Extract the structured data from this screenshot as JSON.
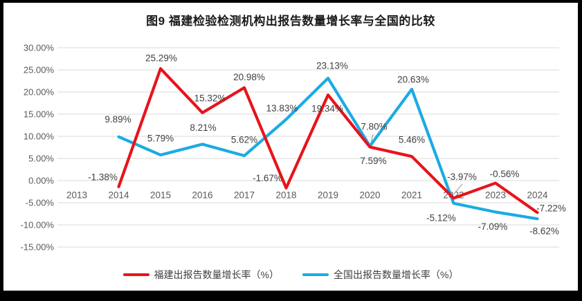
{
  "title": "图9 福建检验检测机构出报告数量增长率与全国的比较",
  "chart_data": {
    "type": "line",
    "title": "图9 福建检验检测机构出报告数量增长率与全国的比较",
    "categories": [
      "2013",
      "2014",
      "2015",
      "2016",
      "2017",
      "2018",
      "2019",
      "2020",
      "2021",
      "2022",
      "2023",
      "2024"
    ],
    "series": [
      {
        "name": "福建出报告数量增长率（%）",
        "color": "#e8131b",
        "values": [
          null,
          -1.38,
          25.29,
          15.32,
          20.98,
          -1.67,
          19.34,
          7.59,
          5.46,
          -3.97,
          -0.56,
          -7.22
        ],
        "labels": [
          null,
          "-1.38%",
          "25.29%",
          "15.32%",
          "20.98%",
          "-1.67%",
          "19.34%",
          "7.59%",
          "5.46%",
          "-3.97%",
          "-0.56%",
          "-7.22%"
        ]
      },
      {
        "name": "全国出报告数量增长率（%）",
        "color": "#1babe3",
        "values": [
          null,
          9.89,
          5.79,
          8.21,
          5.62,
          13.83,
          23.13,
          7.8,
          20.63,
          -5.12,
          -7.09,
          -8.62
        ],
        "labels": [
          null,
          "9.89%",
          "5.79%",
          "8.21%",
          "5.62%",
          "13.83%",
          "23.13%",
          "7.80%",
          "20.63%",
          "-5.12%",
          "-7.09%",
          "-8.62%"
        ]
      }
    ],
    "y_ticks": [
      "30.00%",
      "25.00%",
      "20.00%",
      "15.00%",
      "10.00%",
      "5.00%",
      "0.00%",
      "-5.00%",
      "-10.00%",
      "-15.00%"
    ],
    "ylim": [
      -15,
      30
    ],
    "y_tick_step": 5,
    "grid": true,
    "legend_position": "bottom",
    "colors": {
      "gridline": "#d9d9d9",
      "axis_text": "#595959",
      "data_label_text": "#404040",
      "leader_line": "#a6a6a6",
      "frame": "#000000"
    }
  }
}
